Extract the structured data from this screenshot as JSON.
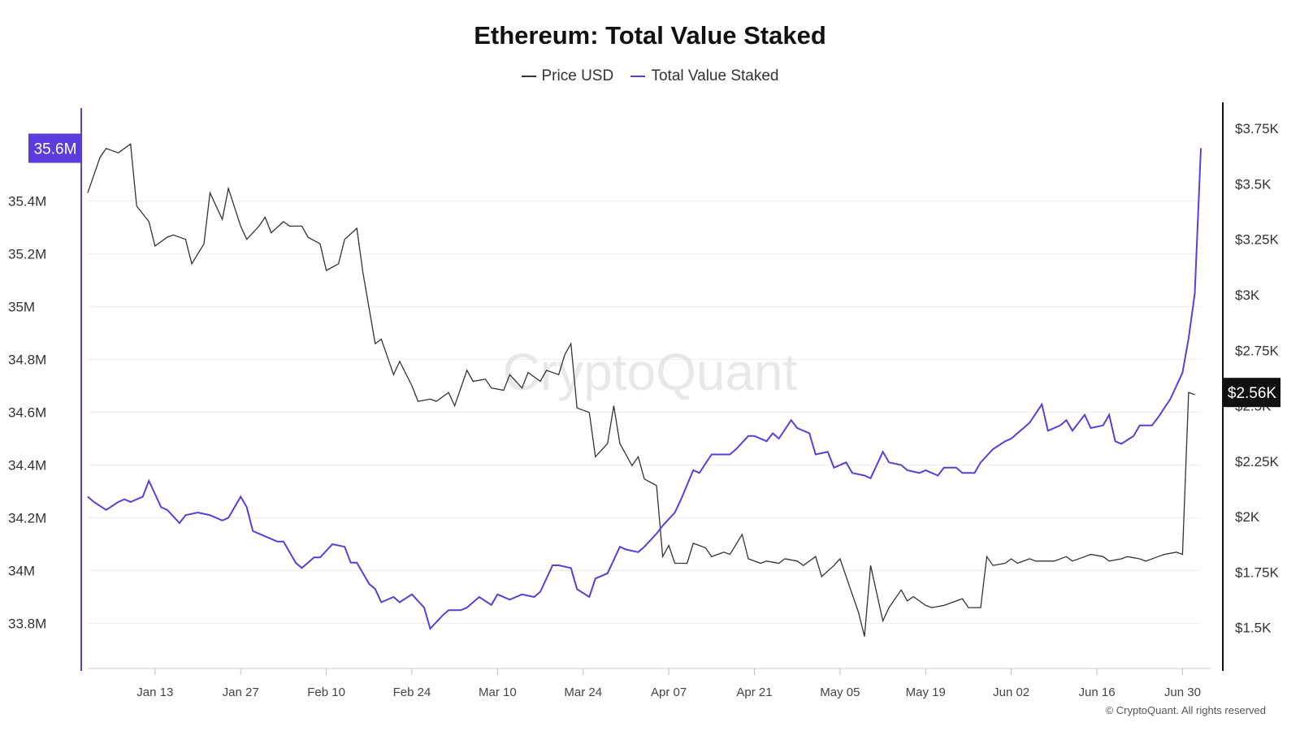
{
  "chart_data": {
    "type": "line",
    "title": "Ethereum: Total Value Staked",
    "legend": "top-center",
    "grid": true,
    "x_ticks": [
      "Jan 13",
      "Jan 27",
      "Feb 10",
      "Feb 24",
      "Mar 10",
      "Mar 24",
      "Apr 07",
      "Apr 21",
      "May 05",
      "May 19",
      "Jun 02",
      "Jun 16",
      "Jun 30"
    ],
    "y_left": {
      "ticks": [
        "33.8M",
        "34M",
        "34.2M",
        "34.4M",
        "34.6M",
        "34.8M",
        "35M",
        "35.2M",
        "35.4M"
      ],
      "range": [
        33.7,
        35.7
      ],
      "current_label": "35.6M",
      "current_value": 35.6
    },
    "y_right": {
      "ticks": [
        "$1.5K",
        "$1.75K",
        "$2K",
        "$2.25K",
        "$2.5K",
        "$2.75K",
        "$3K",
        "$3.25K",
        "$3.5K",
        "$3.75K"
      ],
      "range": [
        1400,
        3780
      ],
      "current_label": "$2.56K",
      "current_value": 2560
    },
    "x_range": [
      "2025-01-02",
      "2025-07-03"
    ],
    "series": [
      {
        "name": "Price USD",
        "axis": "right",
        "color": "#333333",
        "points": [
          [
            "2025-01-02",
            3460
          ],
          [
            "2025-01-04",
            3620
          ],
          [
            "2025-01-05",
            3660
          ],
          [
            "2025-01-07",
            3640
          ],
          [
            "2025-01-09",
            3680
          ],
          [
            "2025-01-10",
            3400
          ],
          [
            "2025-01-12",
            3330
          ],
          [
            "2025-01-13",
            3220
          ],
          [
            "2025-01-15",
            3260
          ],
          [
            "2025-01-16",
            3270
          ],
          [
            "2025-01-18",
            3250
          ],
          [
            "2025-01-19",
            3140
          ],
          [
            "2025-01-21",
            3230
          ],
          [
            "2025-01-22",
            3460
          ],
          [
            "2025-01-24",
            3340
          ],
          [
            "2025-01-25",
            3480
          ],
          [
            "2025-01-27",
            3310
          ],
          [
            "2025-01-28",
            3250
          ],
          [
            "2025-01-30",
            3310
          ],
          [
            "2025-01-31",
            3350
          ],
          [
            "2025-02-01",
            3280
          ],
          [
            "2025-02-03",
            3330
          ],
          [
            "2025-02-04",
            3310
          ],
          [
            "2025-02-06",
            3310
          ],
          [
            "2025-02-07",
            3260
          ],
          [
            "2025-02-09",
            3230
          ],
          [
            "2025-02-10",
            3110
          ],
          [
            "2025-02-12",
            3140
          ],
          [
            "2025-02-13",
            3250
          ],
          [
            "2025-02-15",
            3300
          ],
          [
            "2025-02-16",
            3100
          ],
          [
            "2025-02-18",
            2780
          ],
          [
            "2025-02-19",
            2800
          ],
          [
            "2025-02-21",
            2640
          ],
          [
            "2025-02-22",
            2700
          ],
          [
            "2025-02-24",
            2590
          ],
          [
            "2025-02-25",
            2520
          ],
          [
            "2025-02-27",
            2530
          ],
          [
            "2025-02-28",
            2520
          ],
          [
            "2025-03-02",
            2560
          ],
          [
            "2025-03-03",
            2500
          ],
          [
            "2025-03-05",
            2660
          ],
          [
            "2025-03-06",
            2610
          ],
          [
            "2025-03-08",
            2620
          ],
          [
            "2025-03-09",
            2580
          ],
          [
            "2025-03-11",
            2570
          ],
          [
            "2025-03-12",
            2640
          ],
          [
            "2025-03-14",
            2580
          ],
          [
            "2025-03-15",
            2650
          ],
          [
            "2025-03-17",
            2610
          ],
          [
            "2025-03-18",
            2660
          ],
          [
            "2025-03-20",
            2640
          ],
          [
            "2025-03-21",
            2730
          ],
          [
            "2025-03-22",
            2780
          ],
          [
            "2025-03-23",
            2490
          ],
          [
            "2025-03-25",
            2470
          ],
          [
            "2025-03-26",
            2270
          ],
          [
            "2025-03-28",
            2330
          ],
          [
            "2025-03-29",
            2500
          ],
          [
            "2025-03-30",
            2330
          ],
          [
            "2025-04-01",
            2230
          ],
          [
            "2025-04-02",
            2270
          ],
          [
            "2025-04-03",
            2170
          ],
          [
            "2025-04-05",
            2140
          ],
          [
            "2025-04-06",
            1820
          ],
          [
            "2025-04-07",
            1870
          ],
          [
            "2025-04-08",
            1790
          ],
          [
            "2025-04-10",
            1790
          ],
          [
            "2025-04-11",
            1880
          ],
          [
            "2025-04-13",
            1860
          ],
          [
            "2025-04-14",
            1820
          ],
          [
            "2025-04-16",
            1840
          ],
          [
            "2025-04-17",
            1830
          ],
          [
            "2025-04-19",
            1920
          ],
          [
            "2025-04-20",
            1810
          ],
          [
            "2025-04-22",
            1790
          ],
          [
            "2025-04-23",
            1800
          ],
          [
            "2025-04-25",
            1790
          ],
          [
            "2025-04-26",
            1810
          ],
          [
            "2025-04-28",
            1800
          ],
          [
            "2025-04-29",
            1780
          ],
          [
            "2025-05-01",
            1820
          ],
          [
            "2025-05-02",
            1730
          ],
          [
            "2025-05-04",
            1780
          ],
          [
            "2025-05-05",
            1810
          ],
          [
            "2025-05-07",
            1650
          ],
          [
            "2025-05-08",
            1570
          ],
          [
            "2025-05-09",
            1460
          ],
          [
            "2025-05-10",
            1780
          ],
          [
            "2025-05-12",
            1530
          ],
          [
            "2025-05-13",
            1590
          ],
          [
            "2025-05-15",
            1670
          ],
          [
            "2025-05-16",
            1620
          ],
          [
            "2025-05-17",
            1640
          ],
          [
            "2025-05-19",
            1600
          ],
          [
            "2025-05-20",
            1590
          ],
          [
            "2025-05-22",
            1600
          ],
          [
            "2025-05-23",
            1610
          ],
          [
            "2025-05-25",
            1630
          ],
          [
            "2025-05-26",
            1590
          ],
          [
            "2025-05-28",
            1590
          ],
          [
            "2025-05-29",
            1820
          ],
          [
            "2025-05-30",
            1780
          ],
          [
            "2025-06-01",
            1790
          ],
          [
            "2025-06-02",
            1810
          ],
          [
            "2025-06-03",
            1790
          ],
          [
            "2025-06-05",
            1810
          ],
          [
            "2025-06-06",
            1800
          ],
          [
            "2025-06-08",
            1800
          ],
          [
            "2025-06-09",
            1800
          ],
          [
            "2025-06-11",
            1820
          ],
          [
            "2025-06-12",
            1800
          ],
          [
            "2025-06-14",
            1820
          ],
          [
            "2025-06-15",
            1830
          ],
          [
            "2025-06-17",
            1820
          ],
          [
            "2025-06-18",
            1800
          ],
          [
            "2025-06-20",
            1810
          ],
          [
            "2025-06-21",
            1820
          ],
          [
            "2025-06-23",
            1810
          ],
          [
            "2025-06-24",
            1800
          ],
          [
            "2025-06-26",
            1820
          ],
          [
            "2025-06-27",
            1830
          ],
          [
            "2025-06-29",
            1840
          ],
          [
            "2025-06-30",
            1830
          ],
          [
            "2025-07-01",
            2560
          ],
          [
            "2025-07-02",
            2550
          ]
        ]
      },
      {
        "name": "Total Value Staked",
        "axis": "left",
        "color": "#5b3ddb",
        "points": [
          [
            "2025-01-02",
            34.28
          ],
          [
            "2025-01-03",
            34.26
          ],
          [
            "2025-01-05",
            34.23
          ],
          [
            "2025-01-07",
            34.26
          ],
          [
            "2025-01-08",
            34.27
          ],
          [
            "2025-01-09",
            34.26
          ],
          [
            "2025-01-11",
            34.28
          ],
          [
            "2025-01-12",
            34.34
          ],
          [
            "2025-01-14",
            34.24
          ],
          [
            "2025-01-15",
            34.23
          ],
          [
            "2025-01-17",
            34.18
          ],
          [
            "2025-01-18",
            34.21
          ],
          [
            "2025-01-20",
            34.22
          ],
          [
            "2025-01-22",
            34.21
          ],
          [
            "2025-01-24",
            34.19
          ],
          [
            "2025-01-25",
            34.2
          ],
          [
            "2025-01-27",
            34.28
          ],
          [
            "2025-01-28",
            34.24
          ],
          [
            "2025-01-29",
            34.15
          ],
          [
            "2025-01-31",
            34.13
          ],
          [
            "2025-02-02",
            34.11
          ],
          [
            "2025-02-03",
            34.11
          ],
          [
            "2025-02-05",
            34.03
          ],
          [
            "2025-02-06",
            34.01
          ],
          [
            "2025-02-08",
            34.05
          ],
          [
            "2025-02-09",
            34.05
          ],
          [
            "2025-02-11",
            34.1
          ],
          [
            "2025-02-13",
            34.09
          ],
          [
            "2025-02-14",
            34.03
          ],
          [
            "2025-02-15",
            34.03
          ],
          [
            "2025-02-17",
            33.95
          ],
          [
            "2025-02-18",
            33.93
          ],
          [
            "2025-02-19",
            33.88
          ],
          [
            "2025-02-21",
            33.9
          ],
          [
            "2025-02-22",
            33.88
          ],
          [
            "2025-02-24",
            33.91
          ],
          [
            "2025-02-26",
            33.86
          ],
          [
            "2025-02-27",
            33.78
          ],
          [
            "2025-02-29",
            33.83
          ],
          [
            "2025-03-02",
            33.85
          ],
          [
            "2025-03-04",
            33.85
          ],
          [
            "2025-03-05",
            33.86
          ],
          [
            "2025-03-07",
            33.9
          ],
          [
            "2025-03-09",
            33.87
          ],
          [
            "2025-03-10",
            33.91
          ],
          [
            "2025-03-12",
            33.89
          ],
          [
            "2025-03-14",
            33.91
          ],
          [
            "2025-03-16",
            33.9
          ],
          [
            "2025-03-17",
            33.92
          ],
          [
            "2025-03-19",
            34.02
          ],
          [
            "2025-03-20",
            34.02
          ],
          [
            "2025-03-22",
            34.01
          ],
          [
            "2025-03-23",
            33.93
          ],
          [
            "2025-03-25",
            33.9
          ],
          [
            "2025-03-26",
            33.97
          ],
          [
            "2025-03-28",
            33.99
          ],
          [
            "2025-03-30",
            34.09
          ],
          [
            "2025-03-31",
            34.08
          ],
          [
            "2025-04-02",
            34.07
          ],
          [
            "2025-04-03",
            34.09
          ],
          [
            "2025-04-05",
            34.14
          ],
          [
            "2025-04-06",
            34.17
          ],
          [
            "2025-04-08",
            34.22
          ],
          [
            "2025-04-09",
            34.27
          ],
          [
            "2025-04-11",
            34.38
          ],
          [
            "2025-04-12",
            34.37
          ],
          [
            "2025-04-14",
            34.44
          ],
          [
            "2025-04-15",
            34.44
          ],
          [
            "2025-04-17",
            34.44
          ],
          [
            "2025-04-18",
            34.46
          ],
          [
            "2025-04-20",
            34.51
          ],
          [
            "2025-04-21",
            34.51
          ],
          [
            "2025-04-23",
            34.49
          ],
          [
            "2025-04-24",
            34.52
          ],
          [
            "2025-04-25",
            34.5
          ],
          [
            "2025-04-27",
            34.57
          ],
          [
            "2025-04-28",
            34.54
          ],
          [
            "2025-04-30",
            34.52
          ],
          [
            "2025-05-01",
            34.44
          ],
          [
            "2025-05-03",
            34.45
          ],
          [
            "2025-05-04",
            34.39
          ],
          [
            "2025-05-06",
            34.41
          ],
          [
            "2025-05-07",
            34.37
          ],
          [
            "2025-05-09",
            34.36
          ],
          [
            "2025-05-10",
            34.35
          ],
          [
            "2025-05-12",
            34.45
          ],
          [
            "2025-05-13",
            34.41
          ],
          [
            "2025-05-15",
            34.4
          ],
          [
            "2025-05-16",
            34.38
          ],
          [
            "2025-05-18",
            34.37
          ],
          [
            "2025-05-19",
            34.38
          ],
          [
            "2025-05-21",
            34.36
          ],
          [
            "2025-05-22",
            34.39
          ],
          [
            "2025-05-24",
            34.39
          ],
          [
            "2025-05-25",
            34.37
          ],
          [
            "2025-05-27",
            34.37
          ],
          [
            "2025-05-28",
            34.41
          ],
          [
            "2025-05-30",
            34.46
          ],
          [
            "2025-06-01",
            34.49
          ],
          [
            "2025-06-02",
            34.5
          ],
          [
            "2025-06-04",
            34.54
          ],
          [
            "2025-06-05",
            34.56
          ],
          [
            "2025-06-07",
            34.63
          ],
          [
            "2025-06-08",
            34.53
          ],
          [
            "2025-06-10",
            34.55
          ],
          [
            "2025-06-11",
            34.57
          ],
          [
            "2025-06-12",
            34.53
          ],
          [
            "2025-06-14",
            34.59
          ],
          [
            "2025-06-15",
            34.54
          ],
          [
            "2025-06-17",
            34.55
          ],
          [
            "2025-06-18",
            34.59
          ],
          [
            "2025-06-19",
            34.49
          ],
          [
            "2025-06-20",
            34.48
          ],
          [
            "2025-06-22",
            34.51
          ],
          [
            "2025-06-23",
            34.55
          ],
          [
            "2025-06-25",
            34.55
          ],
          [
            "2025-06-26",
            34.58
          ],
          [
            "2025-06-28",
            34.65
          ],
          [
            "2025-06-30",
            34.75
          ],
          [
            "2025-07-01",
            34.88
          ],
          [
            "2025-07-02",
            35.05
          ],
          [
            "2025-07-03",
            35.6
          ]
        ]
      }
    ]
  },
  "footer": "© CryptoQuant. All rights reserved",
  "watermark": "CryptoQuant"
}
